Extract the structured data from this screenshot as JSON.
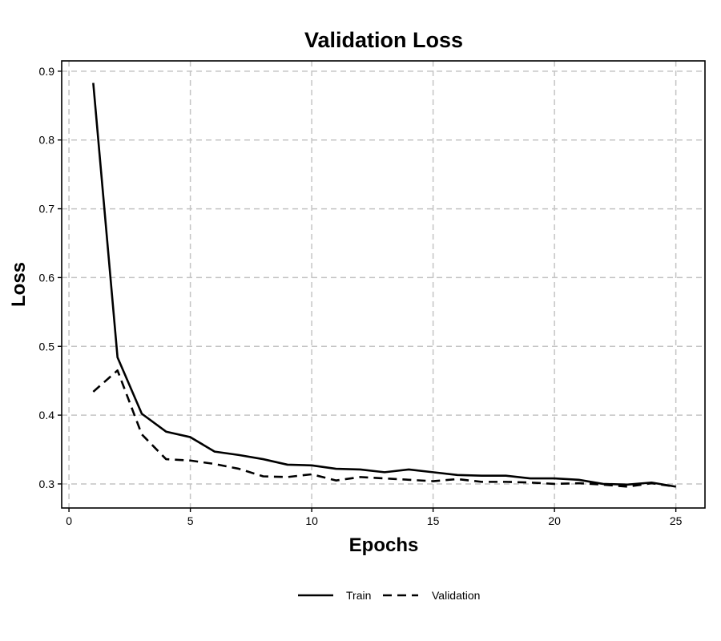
{
  "chart_data": {
    "type": "line",
    "title": "Validation Loss",
    "xlabel": "Epochs",
    "ylabel": "Loss",
    "xlim": [
      -0.3,
      26.2
    ],
    "ylim": [
      0.265,
      0.915
    ],
    "xticks": [
      0,
      5,
      10,
      15,
      20,
      25
    ],
    "yticks": [
      0.3,
      0.4,
      0.5,
      0.6,
      0.7,
      0.8,
      0.9
    ],
    "grid": true,
    "legend_position": "bottom",
    "x": [
      1,
      2,
      3,
      4,
      5,
      6,
      7,
      8,
      9,
      10,
      11,
      12,
      13,
      14,
      15,
      16,
      17,
      18,
      19,
      20,
      21,
      22,
      23,
      24,
      25
    ],
    "series": [
      {
        "name": "Train",
        "style": "solid",
        "color": "#000000",
        "values": [
          0.883,
          0.484,
          0.402,
          0.376,
          0.368,
          0.347,
          0.342,
          0.336,
          0.328,
          0.327,
          0.322,
          0.321,
          0.317,
          0.321,
          0.317,
          0.313,
          0.312,
          0.312,
          0.308,
          0.308,
          0.306,
          0.3,
          0.299,
          0.302,
          0.296
        ]
      },
      {
        "name": "Validation",
        "style": "dashed",
        "color": "#000000",
        "values": [
          0.434,
          0.465,
          0.372,
          0.336,
          0.334,
          0.329,
          0.322,
          0.311,
          0.31,
          0.314,
          0.305,
          0.31,
          0.308,
          0.306,
          0.304,
          0.307,
          0.303,
          0.303,
          0.302,
          0.3,
          0.301,
          0.299,
          0.296,
          0.301,
          0.296
        ]
      }
    ]
  }
}
